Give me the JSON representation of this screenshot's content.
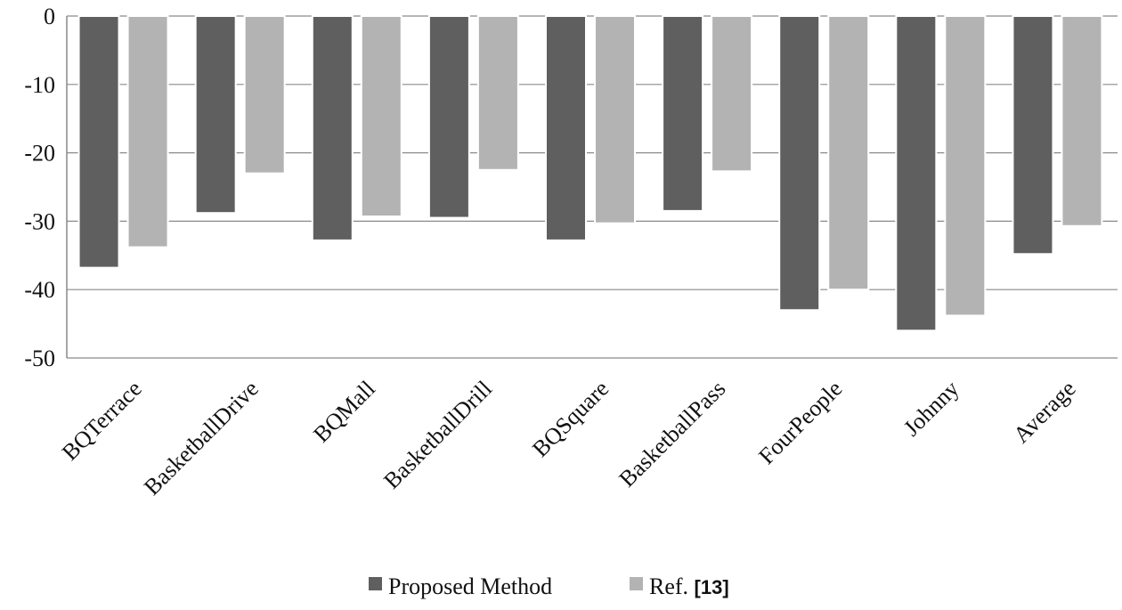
{
  "chart_data": {
    "type": "bar",
    "title": "",
    "xlabel": "",
    "ylabel": "",
    "ylim": [
      -50,
      0
    ],
    "yticks": [
      0,
      -10,
      -20,
      -30,
      -40,
      -50
    ],
    "grid": true,
    "legend_position": "bottom-center",
    "categories": [
      "BQTerrace",
      "BasketballDrive",
      "BQMall",
      "BasketballDrill",
      "BQSquare",
      "BasketballPass",
      "FourPeople",
      "Johnny",
      "Average"
    ],
    "series": [
      {
        "name": "Proposed Method",
        "color": "#5f5f5f",
        "values": [
          -36.8,
          -28.8,
          -32.8,
          -29.5,
          -32.8,
          -28.5,
          -43.0,
          -46.0,
          -34.8
        ]
      },
      {
        "name": "Ref. [13]",
        "color": "#b3b3b3",
        "values": [
          -33.8,
          -23.0,
          -29.3,
          -22.5,
          -30.3,
          -22.7,
          -40.0,
          -43.8,
          -30.7
        ]
      }
    ]
  },
  "legend": {
    "items": [
      {
        "label": "Proposed Method",
        "color": "#5f5f5f"
      },
      {
        "label_main": "Ref. ",
        "label_ref": "[13]",
        "color": "#b3b3b3"
      }
    ]
  }
}
